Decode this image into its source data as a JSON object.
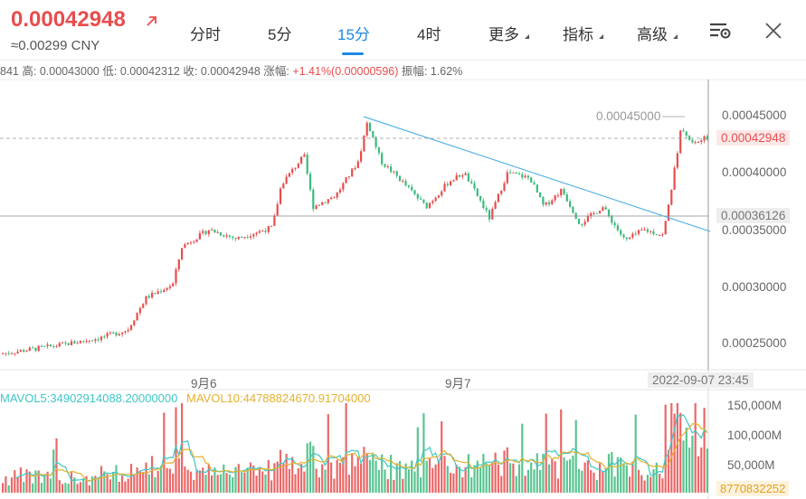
{
  "header": {
    "price": "0.00042948",
    "cny": "≈0.00299 CNY",
    "tabs": [
      {
        "label": "分时",
        "active": false
      },
      {
        "label": "5分",
        "active": false
      },
      {
        "label": "15分",
        "active": true
      },
      {
        "label": "4时",
        "active": false
      },
      {
        "label": "更多",
        "active": false
      },
      {
        "label": "指标",
        "active": false
      },
      {
        "label": "高级",
        "active": false
      }
    ]
  },
  "stats": {
    "open_partial": "841",
    "high_label": "高:",
    "high": "0.00043000",
    "low_label": "低:",
    "low": "0.00042312",
    "close_label": "收:",
    "close": "0.00042948",
    "change_label": "涨幅:",
    "change": "+1.41%(0.00000596)",
    "amp_label": "振幅:",
    "amp": "1.62%"
  },
  "chart": {
    "price_axis": [
      "0.00045000",
      "0.00040000",
      "0.00035000",
      "0.00030000",
      "0.00025000"
    ],
    "current_price": "0.00042948",
    "crosshair_price": "0.00036126",
    "high_marker": "0.00045000",
    "date_labels": [
      "9月6",
      "9月7"
    ],
    "crosshair_time": "2022-09-07 23:45",
    "volume_axis": [
      "150,000M",
      "100,000M",
      "50,000M"
    ],
    "mavol5": "MAVOL5:34902914088.20000000",
    "mavol10": "MAVOL10:44788824670.91704000",
    "volume_value": "8770832252"
  },
  "colors": {
    "up": "#e84d4d",
    "down": "#3dba7e",
    "accent": "#1e88e5",
    "trend": "#5ab4e5",
    "mavol5": "#3ec7c7",
    "mavol10": "#e5b22e"
  }
}
